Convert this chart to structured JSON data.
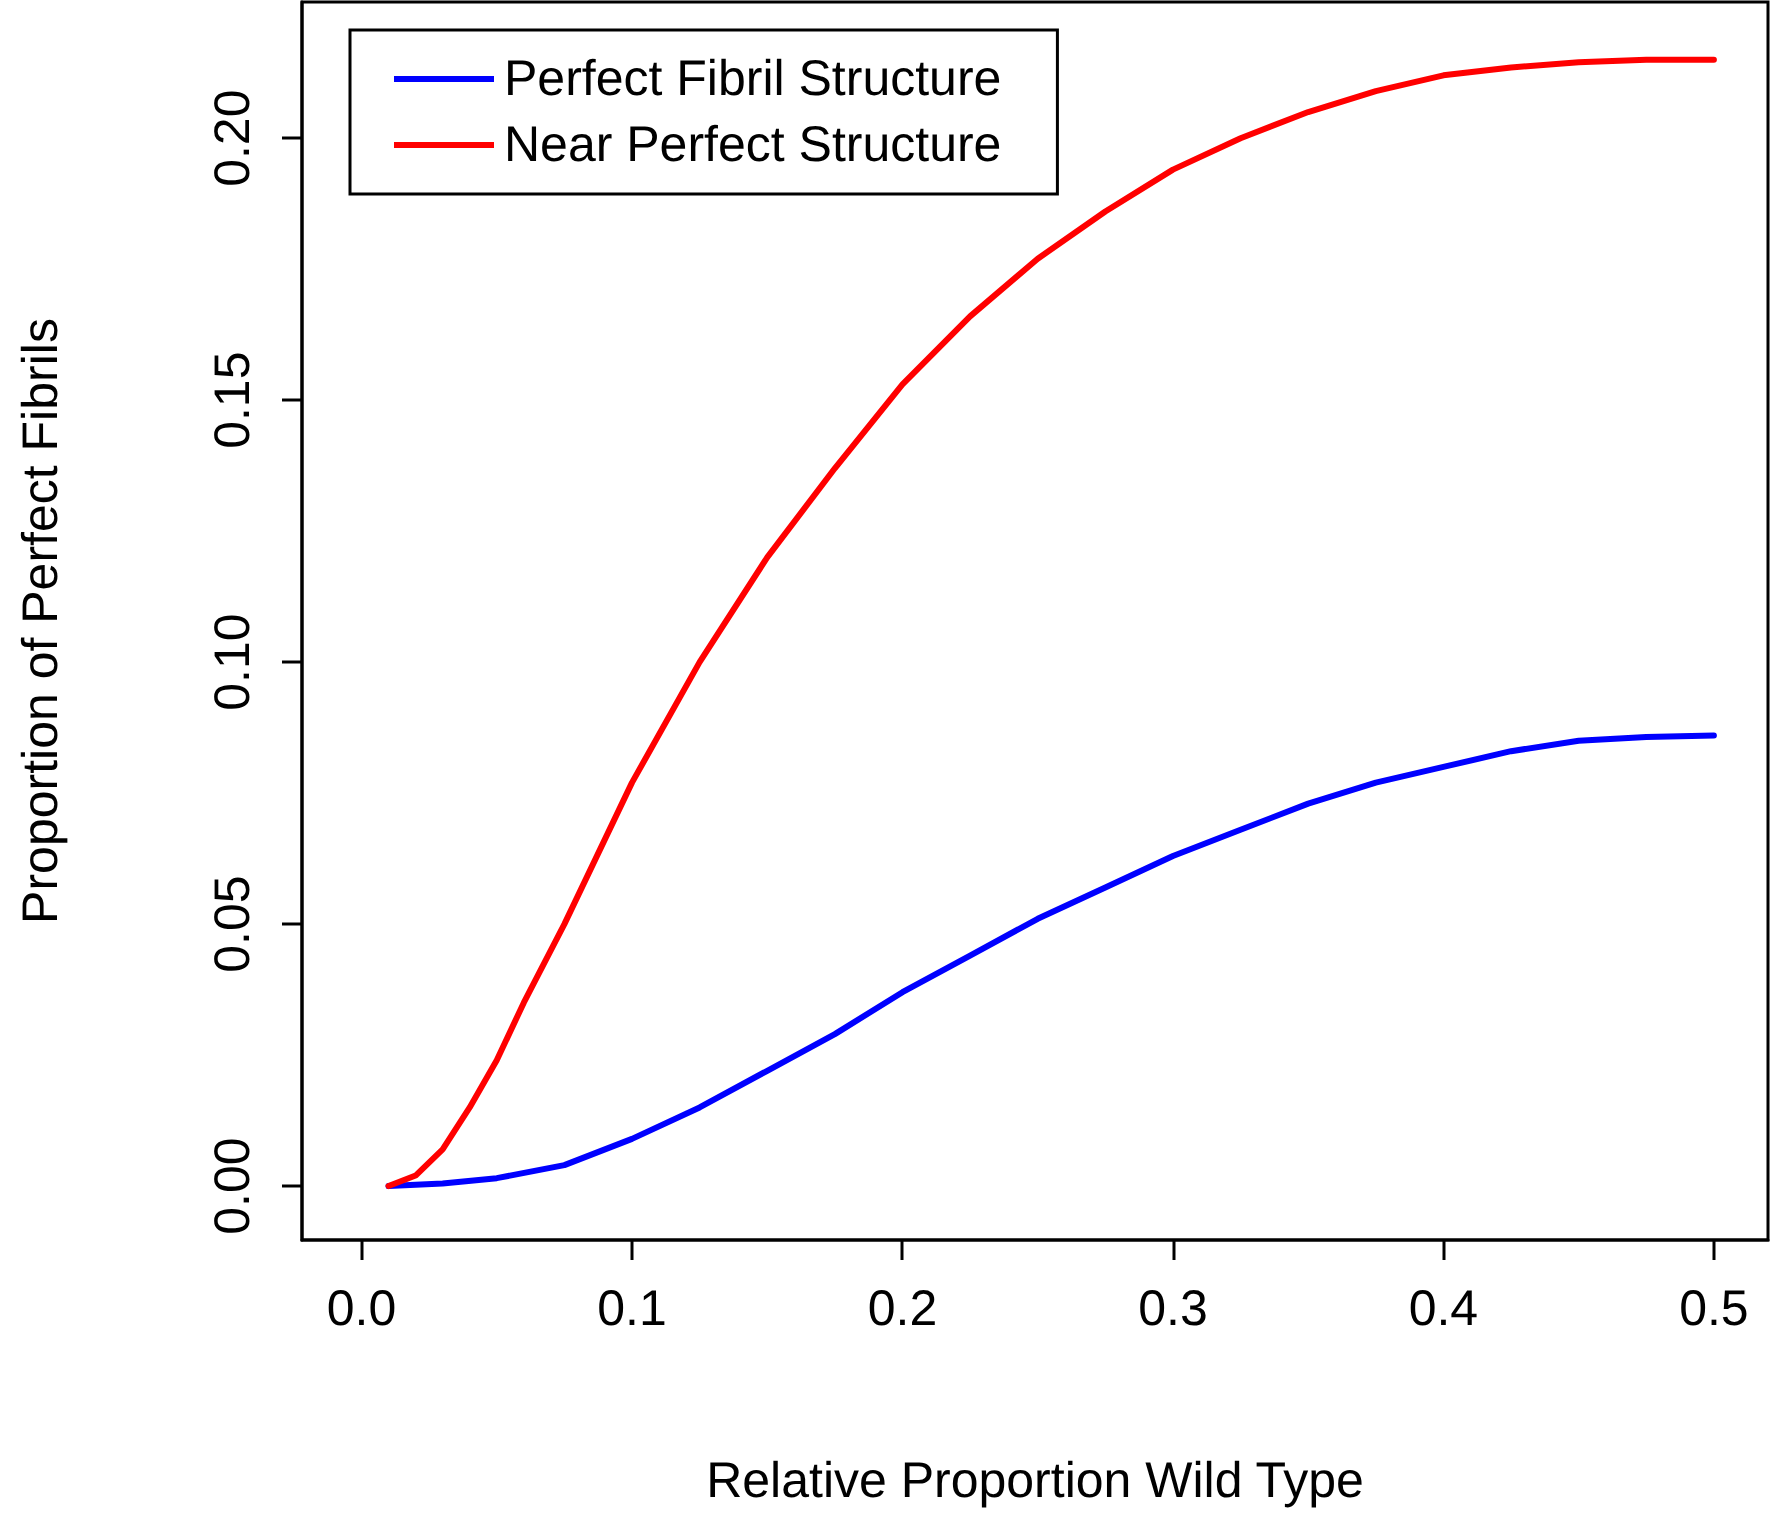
{
  "chart_data": {
    "type": "line",
    "xlabel": "Relative Proportion Wild Type",
    "ylabel": "Proportion of Perfect Fibrils",
    "xlim": [
      -0.022,
      0.52
    ],
    "xticks": [
      {
        "value": 0,
        "label": "0.0"
      },
      0.1,
      0.2,
      0.3,
      0.4,
      0.5
    ],
    "ylim": [
      -0.0103,
      0.226
    ],
    "yticks": [
      {
        "value": 0,
        "label": "0.00"
      },
      0.05,
      {
        "value": 0.1,
        "label": "0.10"
      },
      0.15,
      {
        "value": 0.2,
        "label": "0.20"
      }
    ],
    "grid": false,
    "legend": "top left",
    "marker": "none",
    "line_style": "solid",
    "series": [
      {
        "name": "Perfect Fibril Structure",
        "color": "#0000ff",
        "x": [
          0.01,
          0.03,
          0.05,
          0.075,
          0.1,
          0.125,
          0.15,
          0.175,
          0.2,
          0.225,
          0.25,
          0.275,
          0.3,
          0.325,
          0.35,
          0.375,
          0.4,
          0.425,
          0.45,
          0.475,
          0.5
        ],
        "values": [
          0,
          0.0005,
          0.0015,
          0.004,
          0.009,
          0.015,
          0.022,
          0.029,
          0.037,
          0.044,
          0.051,
          0.057,
          0.063,
          0.068,
          0.073,
          0.077,
          0.08,
          0.083,
          0.085,
          0.0857,
          0.086
        ]
      },
      {
        "name": "Near Perfect Structure",
        "color": "#ff0000",
        "x": [
          0.01,
          0.02,
          0.03,
          0.04,
          0.05,
          0.06,
          0.075,
          0.1,
          0.125,
          0.15,
          0.175,
          0.2,
          0.225,
          0.25,
          0.275,
          0.3,
          0.325,
          0.35,
          0.375,
          0.4,
          0.425,
          0.45,
          0.475,
          0.5
        ],
        "values": [
          0,
          0.002,
          0.007,
          0.015,
          0.024,
          0.035,
          0.05,
          0.077,
          0.1,
          0.12,
          0.137,
          0.153,
          0.166,
          0.177,
          0.186,
          0.194,
          0.2,
          0.205,
          0.209,
          0.212,
          0.2135,
          0.2145,
          0.215,
          0.215
        ]
      }
    ]
  }
}
